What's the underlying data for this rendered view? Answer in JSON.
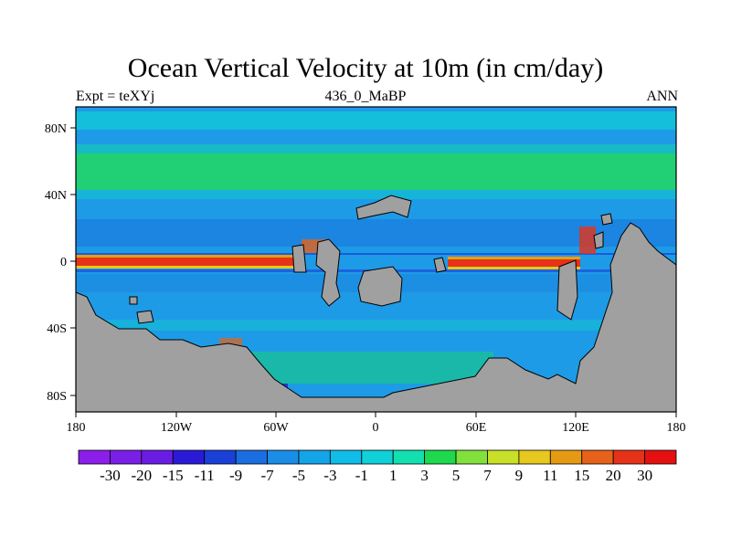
{
  "header": {
    "title": "Ocean Vertical Velocity at 10m (in cm/day)",
    "left": "Expt = teXYj",
    "center": "436_0_MaBP",
    "right": "ANN"
  },
  "map": {
    "x_ticks": [
      "180",
      "120W",
      "60W",
      "0",
      "60E",
      "120E",
      "180"
    ],
    "y_ticks": [
      "80N",
      "40N",
      "0",
      "40S",
      "80S"
    ],
    "land_color": "#a0a0a0",
    "background_field_color": "#1e9be6"
  },
  "colorbar": {
    "labels": [
      "-30",
      "-20",
      "-15",
      "-11",
      "-9",
      "-7",
      "-5",
      "-3",
      "-1",
      "1",
      "3",
      "5",
      "7",
      "9",
      "11",
      "15",
      "20",
      "30"
    ],
    "colors": [
      "#8b1ee8",
      "#7a1fe6",
      "#6a1de2",
      "#2a1ad8",
      "#1a40d8",
      "#1a6ee0",
      "#1a8ee6",
      "#14a4e8",
      "#10bce8",
      "#10d0d8",
      "#12e0b0",
      "#1ed84e",
      "#82e03c",
      "#c8e028",
      "#e6c81e",
      "#e69a14",
      "#e6621a",
      "#e63218",
      "#e61010"
    ]
  }
}
